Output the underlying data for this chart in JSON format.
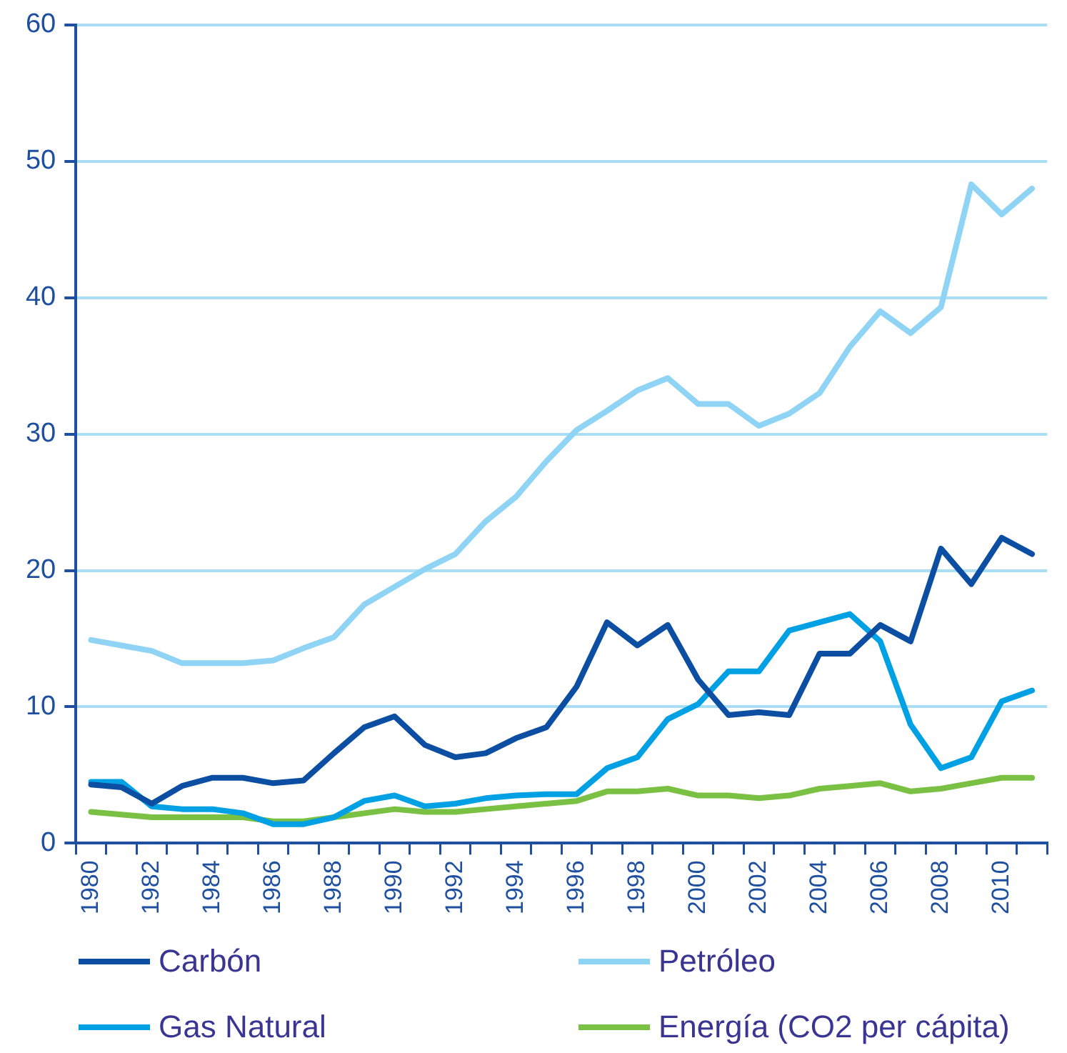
{
  "chart_data": {
    "type": "line",
    "categories": [
      "1980",
      null,
      "1982",
      null,
      "1984",
      null,
      "1986",
      null,
      "1988",
      null,
      "1990",
      null,
      "1992",
      null,
      "1994",
      null,
      "1996",
      null,
      "1998",
      null,
      "2000",
      null,
      "2002",
      null,
      "2004",
      null,
      "2006",
      null,
      "2008",
      null,
      "2010",
      null
    ],
    "series": [
      {
        "name": "Carbón",
        "color": "#0b4ea2",
        "values": [
          4.3,
          4.1,
          2.9,
          4.2,
          4.8,
          4.8,
          4.4,
          4.6,
          6.6,
          8.5,
          9.3,
          7.2,
          6.3,
          6.6,
          7.7,
          8.5,
          11.5,
          16.2,
          14.5,
          16.0,
          12.0,
          9.4,
          9.6,
          9.4,
          13.9,
          13.9,
          16.0,
          14.8,
          21.6,
          19.0,
          22.4,
          21.2
        ]
      },
      {
        "name": "Petróleo",
        "color": "#8fd3f5",
        "values": [
          14.9,
          14.5,
          14.1,
          13.2,
          13.2,
          13.2,
          13.4,
          14.3,
          15.1,
          17.5,
          18.8,
          20.1,
          21.2,
          23.6,
          25.4,
          28.0,
          30.3,
          31.7,
          33.2,
          34.1,
          32.2,
          32.2,
          30.6,
          31.5,
          33.0,
          36.4,
          39.0,
          37.4,
          39.3,
          48.3,
          46.1,
          48.0
        ]
      },
      {
        "name": "Gas Natural",
        "color": "#00a1e4",
        "values": [
          4.5,
          4.5,
          2.7,
          2.5,
          2.5,
          2.2,
          1.4,
          1.4,
          1.9,
          3.1,
          3.5,
          2.7,
          2.9,
          3.3,
          3.5,
          3.6,
          3.6,
          5.5,
          6.3,
          9.1,
          10.2,
          12.6,
          12.6,
          15.6,
          16.2,
          16.8,
          14.8,
          8.7,
          5.5,
          6.3,
          10.4,
          11.2
        ]
      },
      {
        "name": "Energía (CO2 per cápita)",
        "color": "#7ac143",
        "values": [
          2.3,
          2.1,
          1.9,
          1.9,
          1.9,
          1.9,
          1.6,
          1.6,
          1.9,
          2.2,
          2.5,
          2.3,
          2.3,
          2.5,
          2.7,
          2.9,
          3.1,
          3.8,
          3.8,
          4.0,
          3.5,
          3.5,
          3.3,
          3.5,
          4.0,
          4.2,
          4.4,
          3.8,
          4.0,
          4.4,
          4.8,
          4.8
        ]
      }
    ],
    "ylim": [
      0,
      60
    ],
    "yticks": [
      0,
      10,
      20,
      30,
      40,
      50,
      60
    ],
    "grid": "y",
    "legend": "bottom"
  }
}
